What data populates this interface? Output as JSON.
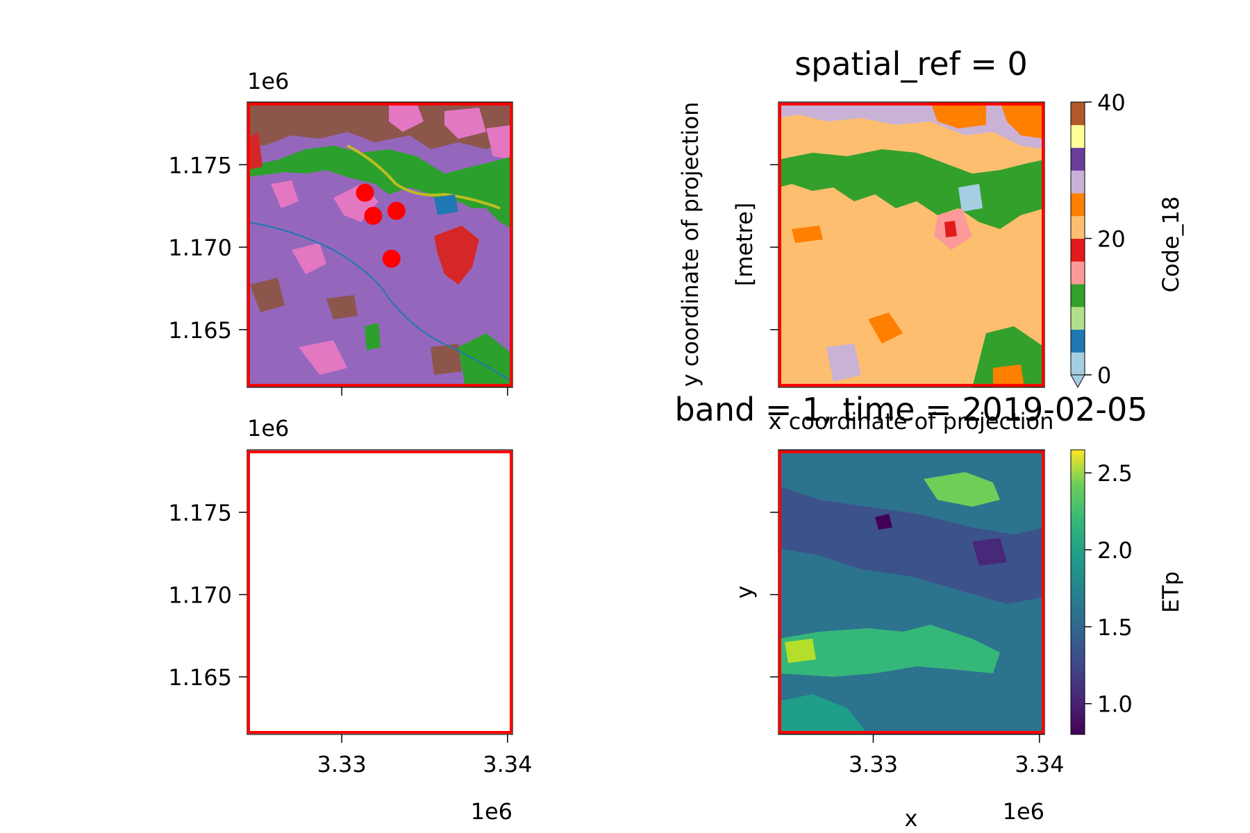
{
  "figure": {
    "colors": {
      "frame": "#ff0000",
      "marker": "#ff0000",
      "river": "#1f77b4"
    }
  },
  "chart_data": [
    {
      "type": "heatmap",
      "panel": "top-left",
      "description_layer": "land-cover map (tab10) with river and point markers",
      "x_multiplier": "",
      "y_multiplier": "1e6",
      "xlim": [
        3.3243,
        3.3403
      ],
      "ylim": [
        1.1615,
        1.1788
      ],
      "yticks": [
        "1.175",
        "1.170",
        "1.165"
      ],
      "ytick_values": [
        1.175,
        1.17,
        1.165
      ],
      "xticks": [
        "",
        ""
      ],
      "xtick_values": [
        3.33,
        3.34
      ],
      "points": [
        {
          "x": 3.3314,
          "y": 1.1733
        },
        {
          "x": 3.3319,
          "y": 1.1719
        },
        {
          "x": 3.3333,
          "y": 1.1722
        },
        {
          "x": 3.333,
          "y": 1.1693
        }
      ],
      "frame_color": "#ff0000"
    },
    {
      "type": "heatmap",
      "panel": "top-right",
      "title": "spatial_ref = 0",
      "ylabel_line1": "y coordinate of projection",
      "ylabel_line2": "[metre]",
      "xlabel": "x coordinate of projection",
      "colorbar": {
        "label": "Code_18",
        "ticks": [
          "0",
          "20",
          "40"
        ],
        "tick_values": [
          0,
          20,
          40
        ],
        "range": [
          0,
          40
        ],
        "colors": [
          "#a6cee3",
          "#1f78b4",
          "#b2df8a",
          "#33a02c",
          "#fb9a99",
          "#e31a1c",
          "#fdbf6f",
          "#ff7f00",
          "#cab2d6",
          "#6a3d9a",
          "#ffff99",
          "#b15928"
        ]
      },
      "dominant_class_color": "#fdbf6f",
      "frame_color": "#ff0000"
    },
    {
      "type": "heatmap",
      "panel": "bottom-left",
      "x_multiplier": "1e6",
      "y_multiplier": "1e6",
      "xlim": [
        3.3243,
        3.3403
      ],
      "ylim": [
        1.1615,
        1.1788
      ],
      "xticks": [
        "3.33",
        "3.34"
      ],
      "xtick_values": [
        3.33,
        3.34
      ],
      "yticks": [
        "1.175",
        "1.170",
        "1.165"
      ],
      "ytick_values": [
        1.175,
        1.17,
        1.165
      ],
      "empty": true,
      "frame_color": "#ff0000"
    },
    {
      "type": "heatmap",
      "panel": "bottom-right",
      "title": "band = 1, time = 2019-02-05",
      "xlabel": "x",
      "ylabel": "y",
      "x_multiplier": "1e6",
      "xticks": [
        "3.33",
        "3.34"
      ],
      "xtick_values": [
        3.33,
        3.34
      ],
      "colorbar": {
        "label": "ETp",
        "ticks": [
          "1.0",
          "1.5",
          "2.0",
          "2.5"
        ],
        "tick_values": [
          1.0,
          1.5,
          2.0,
          2.5
        ],
        "range": [
          0.8,
          2.65
        ],
        "colormap": "viridis"
      },
      "frame_color": "#ff0000"
    }
  ]
}
